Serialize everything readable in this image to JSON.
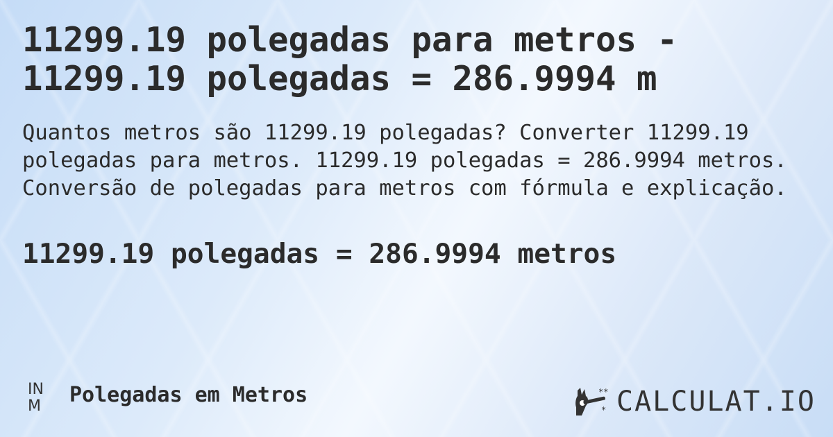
{
  "title": "11299.19 polegadas para metros - 11299.19 polegadas = 286.9994 m",
  "description": "Quantos metros são 11299.19 polegadas? Converter 11299.19 polegadas para metros. 11299.19 polegadas = 286.9994 metros. Conversão de polegadas para metros com fórmula e explicação.",
  "result": "11299.19 polegadas = 286.9994 metros",
  "footer": {
    "unit_badge_top": "IN",
    "unit_badge_bottom": "M",
    "category": "Polegadas em Metros",
    "logo_text": "CALCULAT.IO",
    "logo_icon": "hand-magic-wand-icon"
  }
}
